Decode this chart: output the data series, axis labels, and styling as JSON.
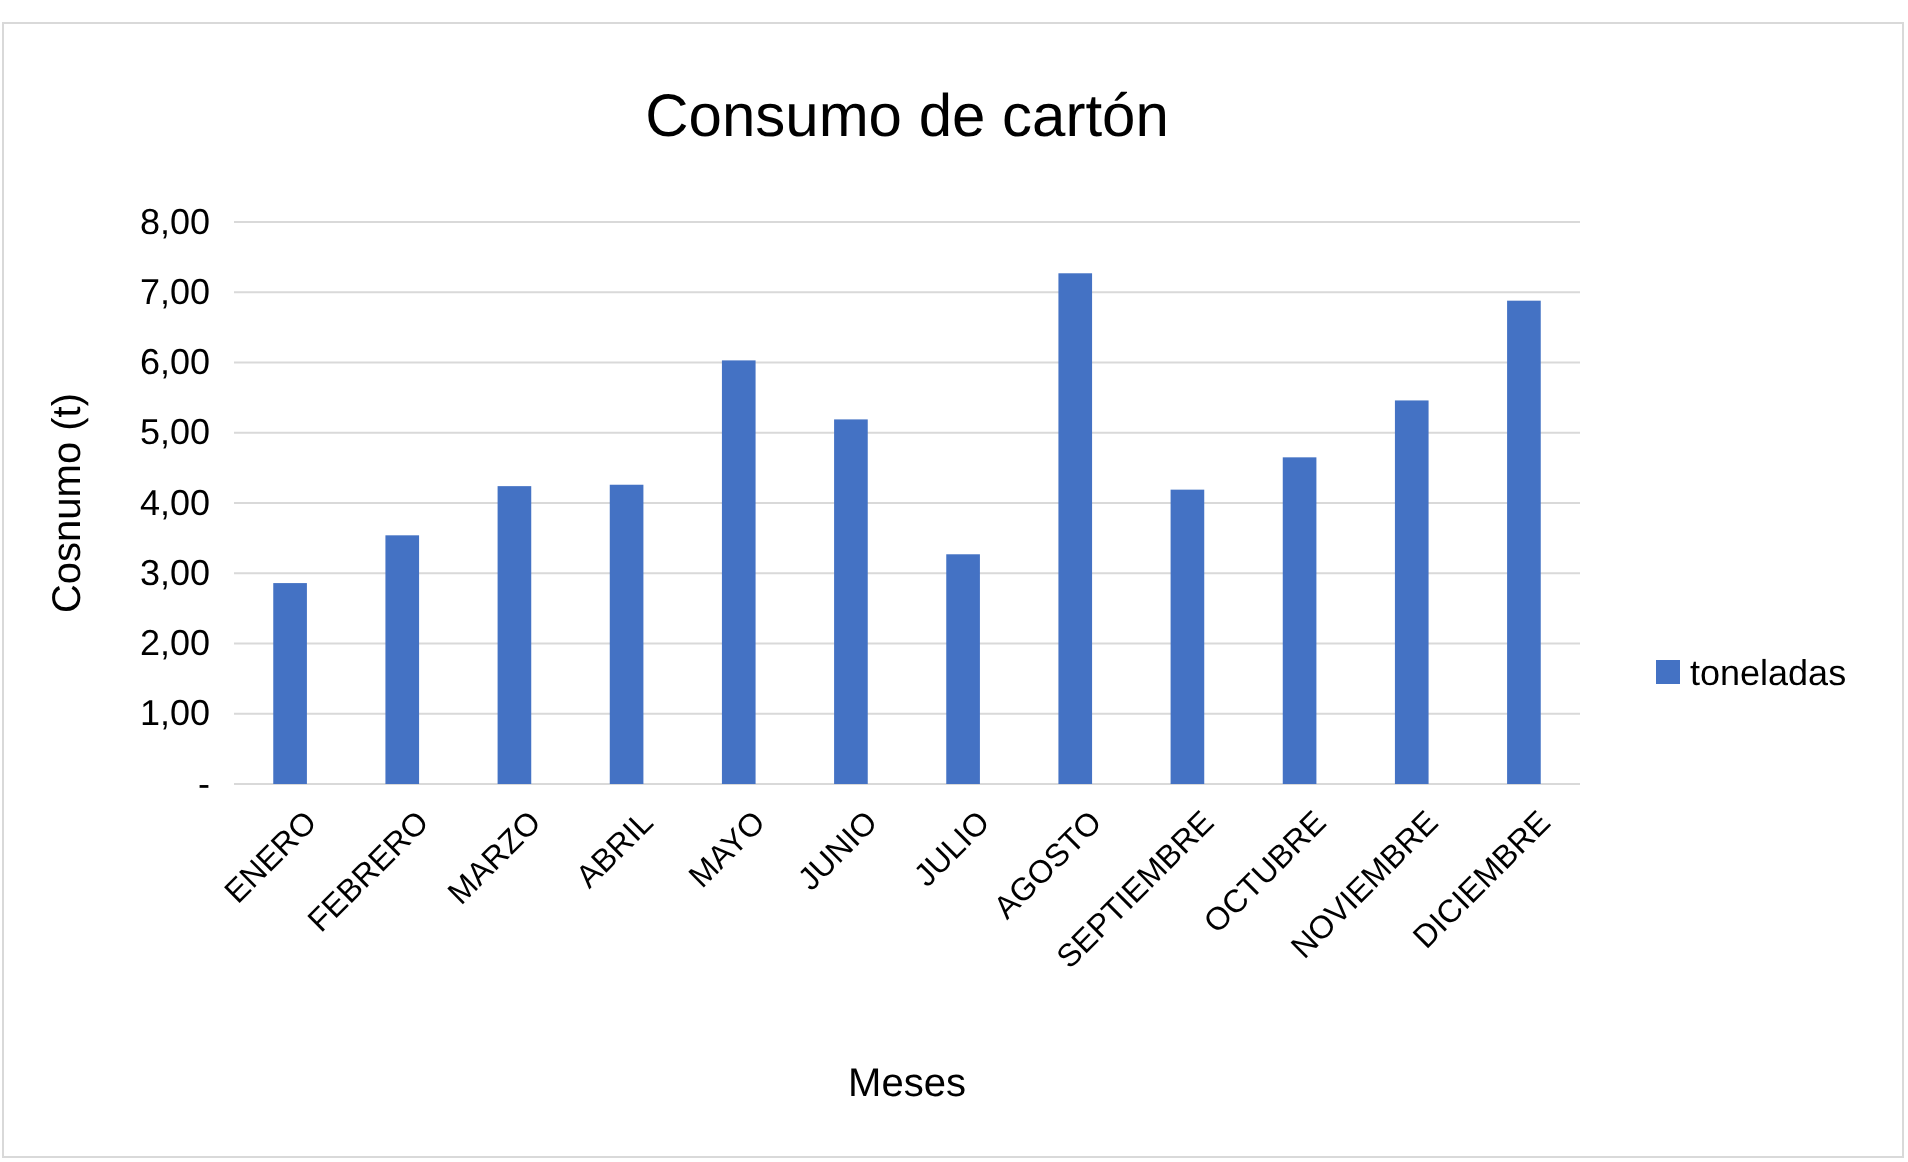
{
  "chart_data": {
    "type": "bar",
    "title": "Consumo de cartón",
    "xlabel": "Meses",
    "ylabel": "Cosnumo (t)",
    "categories": [
      "ENERO",
      "FEBRERO",
      "MARZO",
      "ABRIL",
      "MAYO",
      "JUNIO",
      "JULIO",
      "AGOSTO",
      "SEPTIEMBRE",
      "OCTUBRE",
      "NOVIEMBRE",
      "DICIEMBRE"
    ],
    "series": [
      {
        "name": "toneladas",
        "color": "#4472c4",
        "values": [
          2.86,
          3.54,
          4.24,
          4.26,
          6.03,
          5.19,
          3.27,
          7.27,
          4.19,
          4.65,
          5.46,
          6.88
        ]
      }
    ],
    "ylim": [
      0,
      8
    ],
    "yticks": [
      {
        "value": 0,
        "label": "-"
      },
      {
        "value": 1,
        "label": "1,00"
      },
      {
        "value": 2,
        "label": "2,00"
      },
      {
        "value": 3,
        "label": "3,00"
      },
      {
        "value": 4,
        "label": "4,00"
      },
      {
        "value": 5,
        "label": "5,00"
      },
      {
        "value": 6,
        "label": "6,00"
      },
      {
        "value": 7,
        "label": "7,00"
      },
      {
        "value": 8,
        "label": "8,00"
      }
    ],
    "grid": "y",
    "legend": "right"
  }
}
